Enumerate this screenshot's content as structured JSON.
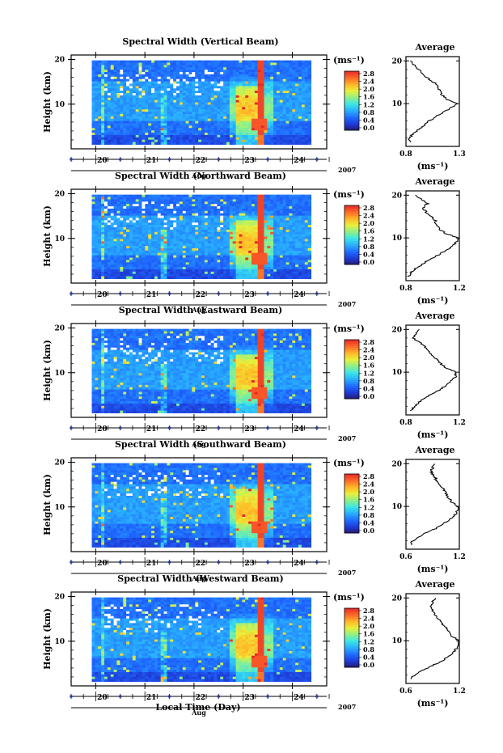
{
  "chart_data": [
    {
      "type": "heatmap",
      "title": "Spectral Width (Vertical Beam)",
      "ylabel": "Height (km)",
      "yticks": [
        "20",
        "10"
      ],
      "xticks": [
        "20",
        "21",
        "22",
        "23",
        "24"
      ],
      "month": "Aug",
      "year": "2007",
      "colorbar": {
        "unit": "(ms⁻¹)",
        "ticks": [
          "2.8",
          "2.4",
          "2.0",
          "1.6",
          "1.2",
          "0.8",
          "0.4",
          "0.0"
        ],
        "range": [
          0,
          2.8
        ]
      },
      "average": {
        "title": "Average",
        "xticks": [
          "0.8",
          "1.3"
        ],
        "xlim": [
          0.8,
          1.3
        ],
        "xlabel": "(ms⁻¹)",
        "yticks": [
          "20",
          "10"
        ],
        "profile": [
          [
            0.84,
            1
          ],
          [
            0.83,
            2
          ],
          [
            0.87,
            3
          ],
          [
            0.92,
            4
          ],
          [
            0.97,
            5
          ],
          [
            1.02,
            6
          ],
          [
            1.08,
            7
          ],
          [
            1.15,
            8
          ],
          [
            1.22,
            9
          ],
          [
            1.28,
            10
          ],
          [
            1.18,
            11
          ],
          [
            1.14,
            12
          ],
          [
            1.12,
            13
          ],
          [
            1.1,
            14
          ],
          [
            1.06,
            15
          ],
          [
            1.0,
            16
          ],
          [
            0.95,
            17
          ],
          [
            0.92,
            18
          ],
          [
            0.88,
            19
          ],
          [
            0.84,
            20
          ]
        ]
      }
    },
    {
      "type": "heatmap",
      "title": "Spectral Width (Northward Beam)",
      "ylabel": "Height (km)",
      "yticks": [
        "20",
        "10"
      ],
      "xticks": [
        "20",
        "21",
        "22",
        "23",
        "24"
      ],
      "month": "Aug",
      "year": "2007",
      "colorbar": {
        "unit": "(ms⁻¹)",
        "ticks": [
          "2.8",
          "2.4",
          "2.0",
          "1.6",
          "1.2",
          "0.8",
          "0.4",
          "0.0"
        ],
        "range": [
          0,
          2.8
        ]
      },
      "average": {
        "title": "Average",
        "xticks": [
          "0.8",
          "1.2"
        ],
        "xlim": [
          0.8,
          1.2
        ],
        "xlabel": "(ms⁻¹)",
        "yticks": [
          "20",
          "10"
        ],
        "profile": [
          [
            0.82,
            1
          ],
          [
            0.84,
            2
          ],
          [
            0.88,
            3
          ],
          [
            0.93,
            4
          ],
          [
            0.98,
            5
          ],
          [
            1.04,
            6
          ],
          [
            1.1,
            7
          ],
          [
            1.15,
            8
          ],
          [
            1.18,
            9
          ],
          [
            1.19,
            10
          ],
          [
            1.1,
            11
          ],
          [
            1.05,
            12
          ],
          [
            1.03,
            13
          ],
          [
            1.02,
            14
          ],
          [
            0.99,
            15
          ],
          [
            0.95,
            16
          ],
          [
            0.93,
            17
          ],
          [
            0.96,
            18
          ],
          [
            0.92,
            19
          ],
          [
            0.87,
            20
          ]
        ]
      }
    },
    {
      "type": "heatmap",
      "title": "Spectral Width (Eastward Beam)",
      "ylabel": "Height (km)",
      "yticks": [
        "20",
        "10"
      ],
      "xticks": [
        "20",
        "21",
        "22",
        "23",
        "24"
      ],
      "month": "Aug",
      "year": "2007",
      "colorbar": {
        "unit": "(ms⁻¹)",
        "ticks": [
          "2.8",
          "2.4",
          "2.0",
          "1.6",
          "1.2",
          "0.8",
          "0.4",
          "0.0"
        ],
        "range": [
          0,
          2.8
        ]
      },
      "average": {
        "title": "Average",
        "xticks": [
          "0.8",
          "1.2"
        ],
        "xlim": [
          0.8,
          1.2
        ],
        "xlabel": "(ms⁻¹)",
        "yticks": [
          "20",
          "10"
        ],
        "profile": [
          [
            0.84,
            1
          ],
          [
            0.86,
            2
          ],
          [
            0.9,
            3
          ],
          [
            0.95,
            4
          ],
          [
            1.0,
            5
          ],
          [
            1.06,
            6
          ],
          [
            1.1,
            7
          ],
          [
            1.14,
            8
          ],
          [
            1.17,
            9
          ],
          [
            1.18,
            10
          ],
          [
            1.1,
            11
          ],
          [
            1.06,
            12
          ],
          [
            1.03,
            13
          ],
          [
            1.0,
            14
          ],
          [
            0.97,
            15
          ],
          [
            0.94,
            16
          ],
          [
            0.9,
            17
          ],
          [
            0.85,
            18
          ],
          [
            0.88,
            19
          ],
          [
            0.9,
            20
          ]
        ]
      }
    },
    {
      "type": "heatmap",
      "title": "Spectral Width (Southward Beam)",
      "ylabel": "Height (km)",
      "yticks": [
        "20",
        "10"
      ],
      "xticks": [
        "20",
        "21",
        "22",
        "23",
        "24"
      ],
      "month": "Aug",
      "year": "2007",
      "colorbar": {
        "unit": "(ms⁻¹)",
        "ticks": [
          "2.8",
          "2.4",
          "2.0",
          "1.6",
          "1.2",
          "0.8",
          "0.4",
          "0.0"
        ],
        "range": [
          0,
          2.8
        ]
      },
      "average": {
        "title": "Average",
        "xticks": [
          "0.6",
          "1.2"
        ],
        "xlim": [
          0.6,
          1.2
        ],
        "xlabel": "(ms⁻¹)",
        "yticks": [
          "20",
          "10"
        ],
        "profile": [
          [
            0.65,
            1
          ],
          [
            0.68,
            2
          ],
          [
            0.75,
            3
          ],
          [
            0.85,
            4
          ],
          [
            0.95,
            5
          ],
          [
            1.03,
            6
          ],
          [
            1.1,
            7
          ],
          [
            1.15,
            8
          ],
          [
            1.18,
            9
          ],
          [
            1.19,
            10
          ],
          [
            1.12,
            11
          ],
          [
            1.08,
            12
          ],
          [
            1.05,
            13
          ],
          [
            1.02,
            14
          ],
          [
            0.98,
            15
          ],
          [
            0.95,
            16
          ],
          [
            0.92,
            17
          ],
          [
            0.88,
            18
          ],
          [
            0.9,
            19
          ],
          [
            0.92,
            20
          ]
        ]
      }
    },
    {
      "type": "heatmap",
      "title": "Spectral Width (Westward Beam)",
      "ylabel": "Height (km)",
      "yticks": [
        "20",
        "10"
      ],
      "xticks": [
        "20",
        "21",
        "22",
        "23",
        "24"
      ],
      "month": "Aug",
      "year": "2007",
      "colorbar": {
        "unit": "(ms⁻¹)",
        "ticks": [
          "2.8",
          "2.4",
          "2.0",
          "1.6",
          "1.2",
          "0.8",
          "0.4",
          "0.0"
        ],
        "range": [
          0,
          2.8
        ]
      },
      "average": {
        "title": "Average",
        "xticks": [
          "0.6",
          "1.2"
        ],
        "xlim": [
          0.6,
          1.2
        ],
        "xlabel": "(ms⁻¹)",
        "yticks": [
          "20",
          "10"
        ],
        "profile": [
          [
            0.65,
            1
          ],
          [
            0.7,
            2
          ],
          [
            0.78,
            3
          ],
          [
            0.88,
            4
          ],
          [
            0.98,
            5
          ],
          [
            1.06,
            6
          ],
          [
            1.12,
            7
          ],
          [
            1.16,
            8
          ],
          [
            1.19,
            9
          ],
          [
            1.2,
            10
          ],
          [
            1.12,
            11
          ],
          [
            1.08,
            12
          ],
          [
            1.05,
            13
          ],
          [
            1.01,
            14
          ],
          [
            0.97,
            15
          ],
          [
            0.93,
            16
          ],
          [
            0.9,
            17
          ],
          [
            0.88,
            18
          ],
          [
            0.9,
            19
          ],
          [
            0.93,
            20
          ]
        ]
      }
    }
  ],
  "xlabel": "Local Time (Day)"
}
